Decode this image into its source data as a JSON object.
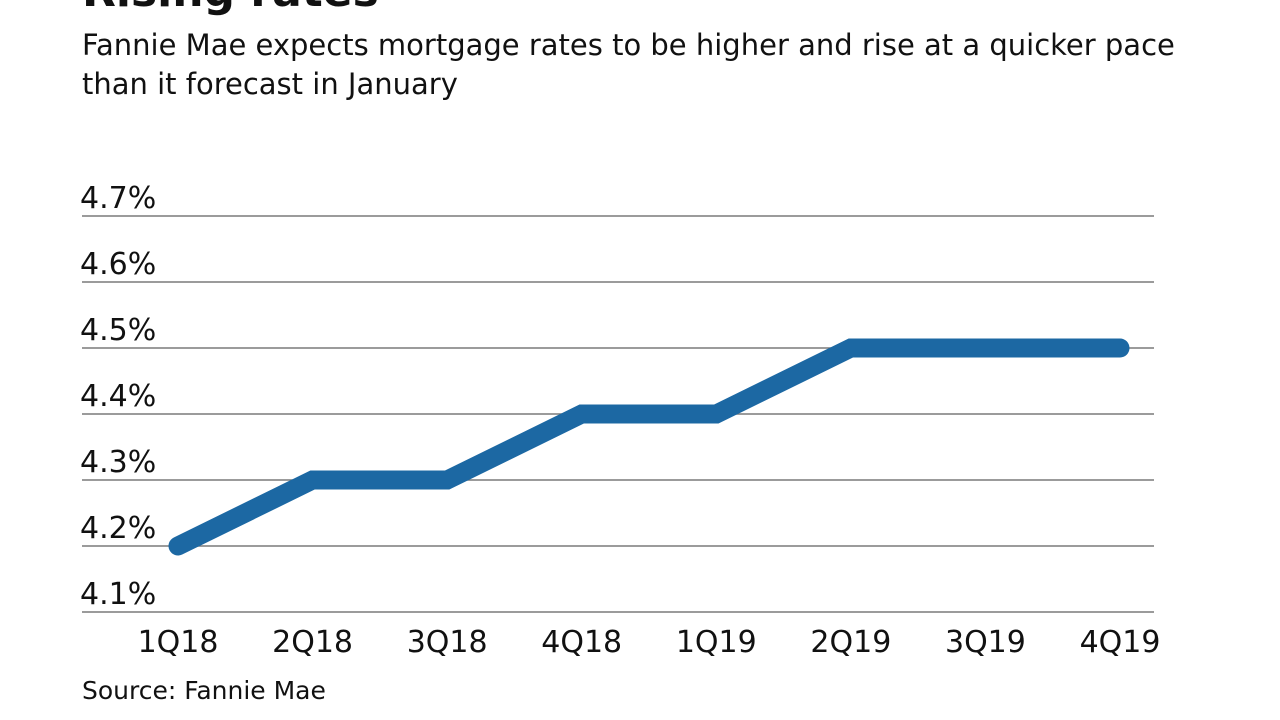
{
  "chart_data": {
    "type": "line",
    "title": "Rising rates",
    "subtitle": "Fannie Mae expects mortgage rates to be higher and rise at a quicker pace than it forecast in January",
    "source": "Source: Fannie Mae",
    "categories": [
      "1Q18",
      "2Q18",
      "3Q18",
      "4Q18",
      "1Q19",
      "2Q19",
      "3Q19",
      "4Q19"
    ],
    "series": [
      {
        "values": [
          4.2,
          4.3,
          4.3,
          4.4,
          4.4,
          4.5,
          4.5,
          4.5
        ]
      }
    ],
    "ylim": [
      4.1,
      4.7
    ],
    "yticks": [
      4.1,
      4.2,
      4.3,
      4.4,
      4.5,
      4.6,
      4.7
    ],
    "ytick_labels": [
      "4.1%",
      "4.2%",
      "4.3%",
      "4.4%",
      "4.5%",
      "4.6%",
      "4.7%"
    ],
    "grid": true,
    "colors": {
      "line": "#1c68a3",
      "grid": "#7a7a7a"
    }
  }
}
